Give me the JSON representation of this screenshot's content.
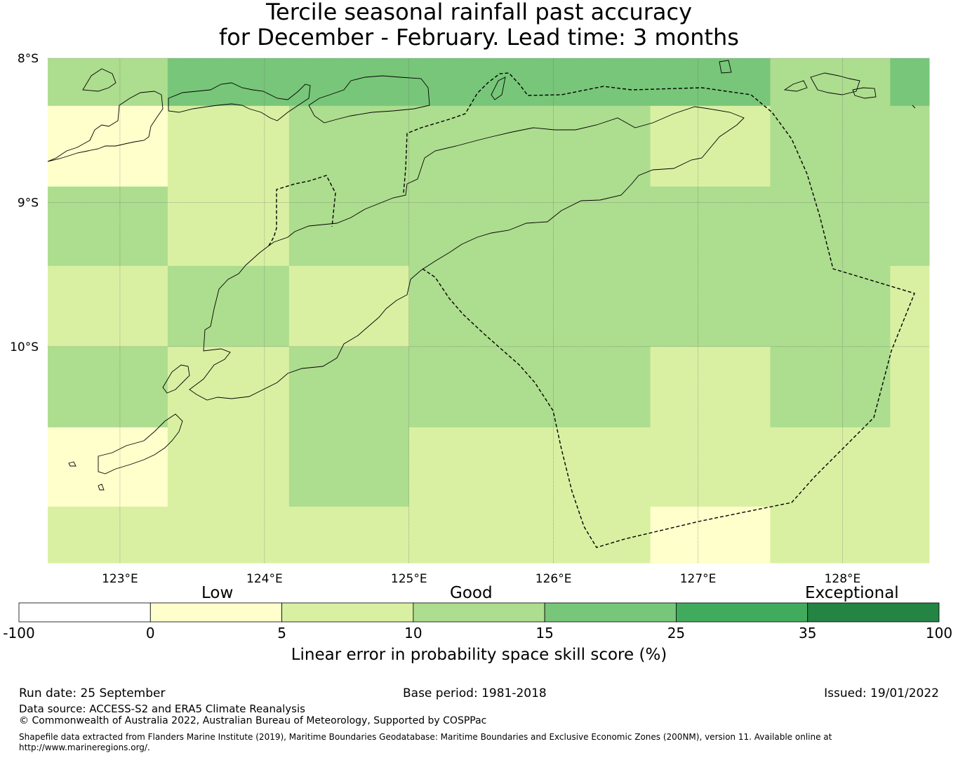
{
  "title": {
    "line1": "Tercile seasonal rainfall past accuracy",
    "line2": "for December - February. Lead time: 3 months"
  },
  "map": {
    "lat_labels": [
      "8°S",
      "9°S",
      "10°S"
    ],
    "lon_labels": [
      "123°E",
      "124°E",
      "125°E",
      "126°E",
      "127°E",
      "128°E"
    ],
    "lon_range": [
      122.5,
      128.6
    ],
    "lat_range": [
      -8.0,
      -11.5
    ],
    "gridlines": true,
    "grid_lons": [
      123,
      124,
      125,
      126,
      127,
      128
    ],
    "grid_lats": [
      -8,
      -9,
      -10
    ],
    "cell_lon_edges": [
      122.5,
      123.33,
      124.17,
      125.0,
      125.83,
      126.67,
      127.5,
      128.33,
      128.6
    ],
    "cell_lat_edges": [
      -8.0,
      -8.33,
      -8.89,
      -9.44,
      -10.0,
      -10.56,
      -11.11,
      -11.5
    ],
    "skill_class_rows": [
      [
        3,
        4,
        4,
        4,
        4,
        4,
        3,
        4
      ],
      [
        1,
        2,
        3,
        3,
        3,
        2,
        3,
        3
      ],
      [
        3,
        2,
        3,
        3,
        3,
        3,
        3,
        3
      ],
      [
        2,
        3,
        2,
        3,
        3,
        3,
        3,
        2
      ],
      [
        3,
        2,
        3,
        3,
        3,
        2,
        3,
        2
      ],
      [
        1,
        2,
        3,
        2,
        2,
        2,
        2,
        2
      ],
      [
        2,
        2,
        2,
        2,
        2,
        1,
        2,
        2
      ]
    ],
    "coastline_color": "#000000",
    "eez_boundary_style": "dashed"
  },
  "colorbar": {
    "categories": [
      "Low",
      "Good",
      "Exceptional"
    ],
    "tick_labels": [
      "-100",
      "0",
      "5",
      "10",
      "15",
      "25",
      "35",
      "100"
    ],
    "colors": [
      "#ffffff",
      "#ffffcc",
      "#d9f0a3",
      "#addd8e",
      "#78c679",
      "#41ab5d",
      "#238443"
    ],
    "label": "Linear error in probability space skill score (%)"
  },
  "footer": {
    "run_date": "Run date: 25 September",
    "base_period": "Base period: 1981-2018",
    "issued": "Issued: 19/01/2022",
    "data_source": "Data source: ACCESS-S2 and ERA5 Climate Reanalysis",
    "copyright": "© Commonwealth of Australia 2022, Australian Bureau of Meteorology, Supported by COSPPac",
    "shapefile_line1": "Shapefile data extracted from Flanders Marine Institute (2019), Maritime Boundaries Geodatabase: Maritime Boundaries and Exclusive Economic Zones (200NM), version 11. Available online at",
    "shapefile_line2": "http://www.marineregions.org/."
  }
}
